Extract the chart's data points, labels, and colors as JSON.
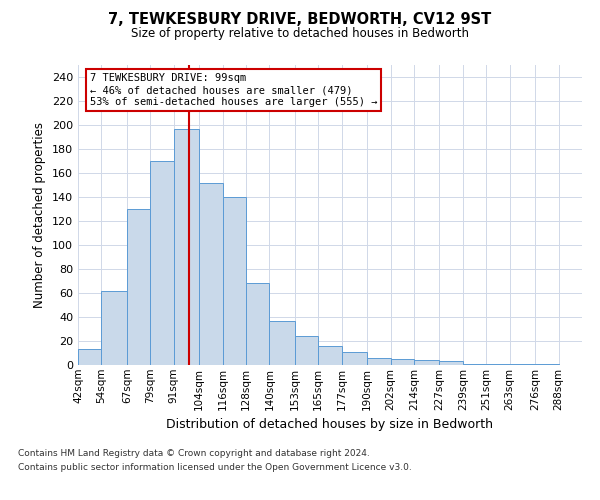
{
  "title": "7, TEWKESBURY DRIVE, BEDWORTH, CV12 9ST",
  "subtitle": "Size of property relative to detached houses in Bedworth",
  "xlabel": "Distribution of detached houses by size in Bedworth",
  "ylabel": "Number of detached properties",
  "bin_labels": [
    "42sqm",
    "54sqm",
    "67sqm",
    "79sqm",
    "91sqm",
    "104sqm",
    "116sqm",
    "128sqm",
    "140sqm",
    "153sqm",
    "165sqm",
    "177sqm",
    "190sqm",
    "202sqm",
    "214sqm",
    "227sqm",
    "239sqm",
    "251sqm",
    "263sqm",
    "276sqm",
    "288sqm"
  ],
  "hist_values": [
    13,
    62,
    130,
    170,
    197,
    152,
    140,
    68,
    37,
    24,
    16,
    11,
    6,
    5,
    4,
    3,
    1,
    1,
    1,
    1
  ],
  "bar_color": "#c9d9ea",
  "bar_edge_color": "#5b9bd5",
  "vline_x": 99,
  "vline_color": "#cc0000",
  "annotation_text": "7 TEWKESBURY DRIVE: 99sqm\n← 46% of detached houses are smaller (479)\n53% of semi-detached houses are larger (555) →",
  "annotation_box_color": "#ffffff",
  "annotation_box_edge": "#cc0000",
  "footer_line1": "Contains HM Land Registry data © Crown copyright and database right 2024.",
  "footer_line2": "Contains public sector information licensed under the Open Government Licence v3.0.",
  "ylim": [
    0,
    250
  ],
  "yticks": [
    0,
    20,
    40,
    60,
    80,
    100,
    120,
    140,
    160,
    180,
    200,
    220,
    240
  ],
  "bin_edges": [
    42,
    54,
    67,
    79,
    91,
    104,
    116,
    128,
    140,
    153,
    165,
    177,
    190,
    202,
    214,
    227,
    239,
    251,
    263,
    276,
    288,
    300
  ],
  "bg_color": "#ffffff",
  "grid_color": "#d0d8e8"
}
